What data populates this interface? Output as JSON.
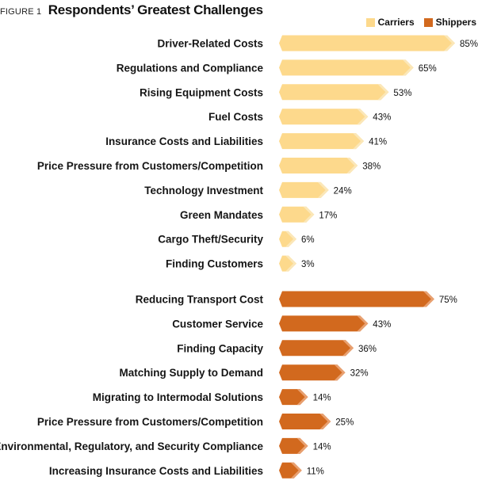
{
  "figure_label": "FIGURE 1",
  "title": "Respondents’ Greatest Challenges",
  "colors": {
    "carriers": "#fdd98c",
    "carriers_tip": "#fbe7b8",
    "shippers": "#d2691e",
    "shippers_tip": "#e8a070"
  },
  "chart_data": {
    "type": "bar",
    "orientation": "horizontal",
    "title": "Respondents’ Greatest Challenges",
    "xlim": [
      0,
      85
    ],
    "grid": false,
    "legend": "top-right",
    "series": [
      {
        "name": "Carriers",
        "categories": [
          "Driver-Related Costs",
          "Regulations and Compliance",
          "Rising Equipment Costs",
          "Fuel Costs",
          "Insurance Costs and Liabilities",
          "Price Pressure from Customers/Competition",
          "Technology Investment",
          "Green Mandates",
          "Cargo Theft/Security",
          "Finding Customers"
        ],
        "values": [
          85,
          65,
          53,
          43,
          41,
          38,
          24,
          17,
          6,
          3
        ],
        "labels": [
          "85%",
          "65%",
          "53%",
          "43%",
          "41%",
          "38%",
          "24%",
          "17%",
          "6%",
          "3%"
        ]
      },
      {
        "name": "Shippers",
        "categories": [
          "Reducing Transport Cost",
          "Customer Service",
          "Finding Capacity",
          "Matching Supply to Demand",
          "Migrating to Intermodal Solutions",
          "Price Pressure from Customers/Competition",
          "Environmental, Regulatory, and Security Compliance",
          "Increasing Insurance Costs and Liabilities"
        ],
        "values": [
          75,
          43,
          36,
          32,
          14,
          25,
          14,
          11
        ],
        "labels": [
          "75%",
          "43%",
          "36%",
          "32%",
          "14%",
          "25%",
          "14%",
          "11%"
        ]
      }
    ]
  }
}
